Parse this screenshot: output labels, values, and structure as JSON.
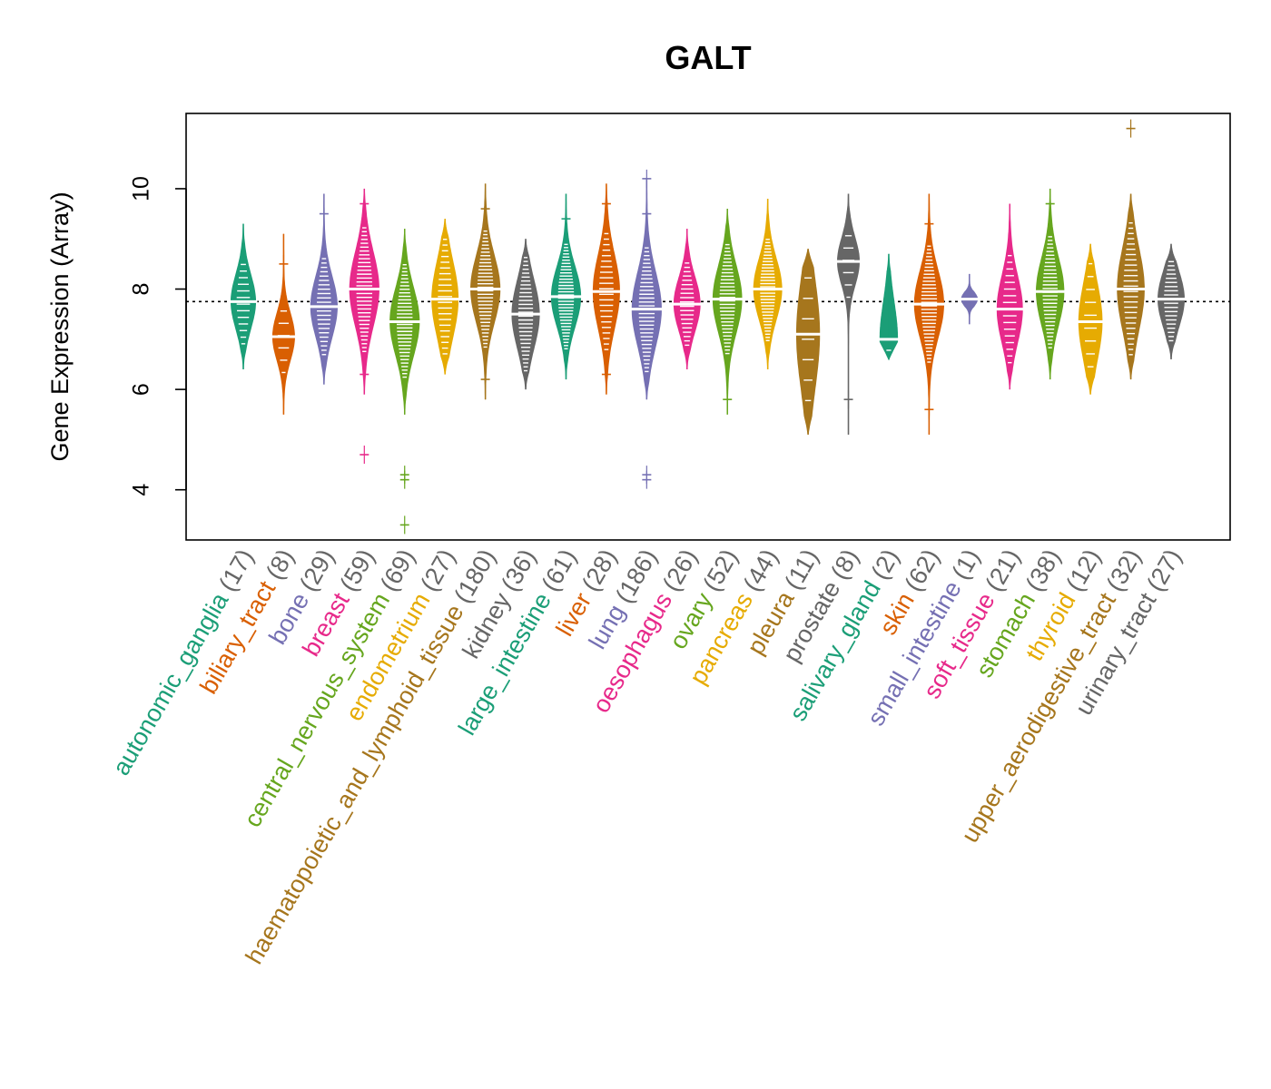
{
  "chart_data": {
    "type": "beeswarm-violin",
    "title": "GALT",
    "ylabel": "Gene Expression (Array)",
    "ylim": [
      3,
      11.5
    ],
    "yticks": [
      4,
      6,
      8,
      10
    ],
    "reference_line": 7.75,
    "categories": [
      {
        "label": "autonomic_ganglia",
        "n": 17,
        "count_label": "(17)",
        "color": "#1B9E77",
        "median": 7.75,
        "min": 6.4,
        "max": 9.3,
        "q1": 7.3,
        "q3": 8.1,
        "outliers": []
      },
      {
        "label": "biliary_tract",
        "n": 8,
        "count_label": "(8)",
        "color": "#D95F02",
        "median": 7.05,
        "min": 5.5,
        "max": 9.1,
        "q1": 6.6,
        "q3": 7.3,
        "outliers": [
          8.5
        ]
      },
      {
        "label": "bone",
        "n": 29,
        "count_label": "(29)",
        "color": "#7570B3",
        "median": 7.65,
        "min": 6.1,
        "max": 9.9,
        "q1": 7.2,
        "q3": 8.1,
        "outliers": [
          9.5
        ]
      },
      {
        "label": "breast",
        "n": 59,
        "count_label": "(59)",
        "color": "#E7298A",
        "median": 8.0,
        "min": 5.9,
        "max": 10.0,
        "q1": 7.4,
        "q3": 8.5,
        "outliers": [
          4.7,
          6.3,
          9.7
        ]
      },
      {
        "label": "central_nervous_system",
        "n": 69,
        "count_label": "(69)",
        "color": "#66A61E",
        "median": 7.35,
        "min": 5.5,
        "max": 9.2,
        "q1": 6.9,
        "q3": 7.9,
        "outliers": [
          3.3,
          4.2,
          4.3
        ]
      },
      {
        "label": "endometrium",
        "n": 27,
        "count_label": "(27)",
        "color": "#E6AB02",
        "median": 7.8,
        "min": 6.3,
        "max": 9.4,
        "q1": 7.3,
        "q3": 8.4,
        "outliers": []
      },
      {
        "label": "haematopoietic_and_lymphoid_tissue",
        "n": 180,
        "count_label": "(180)",
        "color": "#A6761D",
        "median": 8.0,
        "min": 5.8,
        "max": 10.1,
        "q1": 7.5,
        "q3": 8.5,
        "outliers": [
          6.2,
          9.6
        ]
      },
      {
        "label": "kidney",
        "n": 36,
        "count_label": "(36)",
        "color": "#666666",
        "median": 7.5,
        "min": 6.0,
        "max": 9.0,
        "q1": 7.0,
        "q3": 8.0,
        "outliers": []
      },
      {
        "label": "large_intestine",
        "n": 61,
        "count_label": "(61)",
        "color": "#1B9E77",
        "median": 7.85,
        "min": 6.2,
        "max": 9.9,
        "q1": 7.4,
        "q3": 8.3,
        "outliers": [
          9.4
        ]
      },
      {
        "label": "liver",
        "n": 28,
        "count_label": "(28)",
        "color": "#D95F02",
        "median": 7.95,
        "min": 5.9,
        "max": 10.1,
        "q1": 7.4,
        "q3": 8.5,
        "outliers": [
          6.3,
          9.7
        ]
      },
      {
        "label": "lung",
        "n": 186,
        "count_label": "(186)",
        "color": "#7570B3",
        "median": 7.6,
        "min": 5.8,
        "max": 10.2,
        "q1": 7.0,
        "q3": 8.1,
        "outliers": [
          4.2,
          4.3,
          9.5,
          10.2
        ]
      },
      {
        "label": "oesophagus",
        "n": 26,
        "count_label": "(26)",
        "color": "#E7298A",
        "median": 7.7,
        "min": 6.4,
        "max": 9.2,
        "q1": 7.3,
        "q3": 8.1,
        "outliers": []
      },
      {
        "label": "ovary",
        "n": 52,
        "count_label": "(52)",
        "color": "#66A61E",
        "median": 7.8,
        "min": 5.5,
        "max": 9.6,
        "q1": 7.3,
        "q3": 8.3,
        "outliers": [
          5.8
        ]
      },
      {
        "label": "pancreas",
        "n": 44,
        "count_label": "(44)",
        "color": "#E6AB02",
        "median": 8.0,
        "min": 6.4,
        "max": 9.8,
        "q1": 7.5,
        "q3": 8.4,
        "outliers": []
      },
      {
        "label": "pleura",
        "n": 11,
        "count_label": "(11)",
        "color": "#A6761D",
        "median": 7.1,
        "min": 5.1,
        "max": 8.8,
        "q1": 6.2,
        "q3": 7.8,
        "outliers": []
      },
      {
        "label": "prostate",
        "n": 8,
        "count_label": "(8)",
        "color": "#666666",
        "median": 8.55,
        "min": 5.1,
        "max": 9.9,
        "q1": 8.1,
        "q3": 8.8,
        "outliers": [
          5.8
        ]
      },
      {
        "label": "salivary_gland",
        "n": 2,
        "count_label": "(2)",
        "color": "#1B9E77",
        "median": 7.0,
        "min": 6.6,
        "max": 8.7,
        "q1": 7.0,
        "q3": 8.1,
        "outliers": []
      },
      {
        "label": "skin",
        "n": 62,
        "count_label": "(62)",
        "color": "#D95F02",
        "median": 7.7,
        "min": 5.1,
        "max": 9.9,
        "q1": 7.2,
        "q3": 8.2,
        "outliers": [
          5.6,
          9.3
        ]
      },
      {
        "label": "small_intestine",
        "n": 1,
        "count_label": "(1)",
        "color": "#7570B3",
        "median": 7.8,
        "min": 7.3,
        "max": 8.3,
        "q1": 7.7,
        "q3": 7.9,
        "outliers": []
      },
      {
        "label": "soft_tissue",
        "n": 21,
        "count_label": "(21)",
        "color": "#E7298A",
        "median": 7.6,
        "min": 6.0,
        "max": 9.7,
        "q1": 7.1,
        "q3": 8.1,
        "outliers": []
      },
      {
        "label": "stomach",
        "n": 38,
        "count_label": "(38)",
        "color": "#66A61E",
        "median": 7.95,
        "min": 6.2,
        "max": 10.0,
        "q1": 7.4,
        "q3": 8.4,
        "outliers": [
          9.7
        ]
      },
      {
        "label": "thyroid",
        "n": 12,
        "count_label": "(12)",
        "color": "#E6AB02",
        "median": 7.35,
        "min": 5.9,
        "max": 8.9,
        "q1": 6.8,
        "q3": 7.9,
        "outliers": []
      },
      {
        "label": "upper_aerodigestive_tract",
        "n": 32,
        "count_label": "(32)",
        "color": "#A6761D",
        "median": 8.0,
        "min": 6.2,
        "max": 9.9,
        "q1": 7.3,
        "q3": 8.5,
        "outliers": [
          11.2
        ]
      },
      {
        "label": "urinary_tract",
        "n": 27,
        "count_label": "(27)",
        "color": "#666666",
        "median": 7.8,
        "min": 6.6,
        "max": 8.9,
        "q1": 7.4,
        "q3": 8.2,
        "outliers": []
      }
    ]
  }
}
